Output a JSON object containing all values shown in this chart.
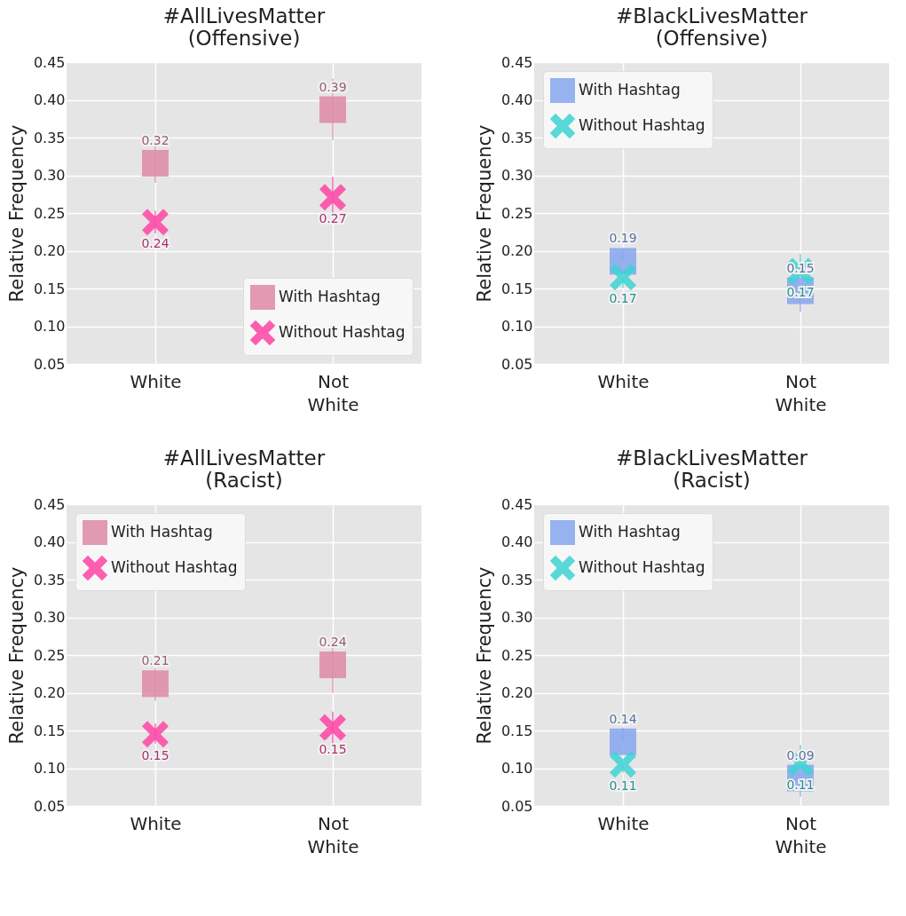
{
  "chart_data": [
    {
      "type": "scatter",
      "title": "#AllLivesMatter\n(Offensive)",
      "ylabel": "Relative Frequency",
      "categories": [
        "White",
        "Not\nWhite"
      ],
      "ylim": [
        0.05,
        0.45
      ],
      "yticks": [
        0.05,
        {
          "value": 0.1,
          "label": "0.10"
        },
        0.15,
        {
          "value": 0.2,
          "label": "0.20"
        },
        0.25,
        {
          "value": 0.3,
          "label": "0.30"
        },
        0.35,
        {
          "value": 0.4,
          "label": "0.40"
        },
        0.45
      ],
      "grid": true,
      "legend": "bottom right",
      "series": [
        {
          "name": "With Hashtag",
          "color": "#de8aa6",
          "marker": "square",
          "values": [
            0.316,
            0.387
          ],
          "value_labels": [
            "0.32",
            "0.39"
          ],
          "errors": [
            [
              0.29,
              0.341
            ],
            [
              0.347,
              0.428
            ]
          ]
        },
        {
          "name": "Without Hashtag",
          "color": "#ff44a4",
          "marker": "cross",
          "values": [
            0.238,
            0.271
          ],
          "value_labels": [
            "0.24",
            "0.27"
          ],
          "errors": [
            [
              0.223,
              0.253
            ],
            [
              0.245,
              0.298
            ]
          ]
        }
      ]
    },
    {
      "type": "scatter",
      "title": "#BlackLivesMatter\n(Offensive)",
      "ylabel": "Relative Frequency",
      "categories": [
        "White",
        "Not\nWhite"
      ],
      "ylim": [
        0.05,
        0.45
      ],
      "yticks": [
        0.05,
        {
          "value": 0.1,
          "label": "0.10"
        },
        0.15,
        {
          "value": 0.2,
          "label": "0.20"
        },
        0.25,
        {
          "value": 0.3,
          "label": "0.30"
        },
        0.35,
        {
          "value": 0.4,
          "label": "0.40"
        },
        0.45
      ],
      "grid": true,
      "legend": "top left",
      "series": [
        {
          "name": "With Hashtag",
          "color": "#86a6ee",
          "marker": "square",
          "values": [
            0.186,
            0.147
          ],
          "value_labels": [
            "0.19",
            "0.15"
          ],
          "errors": [
            [
              0.186,
              0.203
            ],
            [
              0.119,
              0.147
            ]
          ]
        },
        {
          "name": "Without Hashtag",
          "color": "#3dd3d3",
          "marker": "cross",
          "values": [
            0.165,
            0.173
          ],
          "value_labels": [
            "0.17",
            "0.17"
          ],
          "errors": [
            [
              0.151,
              0.165
            ],
            [
              0.173,
              0.196
            ]
          ]
        }
      ]
    },
    {
      "type": "scatter",
      "title": "#AllLivesMatter\n(Racist)",
      "ylabel": "Relative Frequency",
      "categories": [
        "White",
        "Not\nWhite"
      ],
      "ylim": [
        0.05,
        0.45
      ],
      "yticks": [
        0.05,
        {
          "value": 0.1,
          "label": "0.10"
        },
        0.15,
        {
          "value": 0.2,
          "label": "0.20"
        },
        0.25,
        {
          "value": 0.3,
          "label": "0.30"
        },
        0.35,
        {
          "value": 0.4,
          "label": "0.40"
        },
        0.45
      ],
      "grid": true,
      "legend": "top left",
      "series": [
        {
          "name": "With Hashtag",
          "color": "#de8aa6",
          "marker": "square",
          "values": [
            0.212,
            0.237
          ],
          "value_labels": [
            "0.21",
            "0.24"
          ],
          "errors": [
            [
              0.189,
              0.232
            ],
            [
              0.2,
              0.275
            ]
          ]
        },
        {
          "name": "Without Hashtag",
          "color": "#ff44a4",
          "marker": "cross",
          "values": [
            0.145,
            0.154
          ],
          "value_labels": [
            "0.15",
            "0.15"
          ],
          "errors": [
            [
              0.133,
              0.159
            ],
            [
              0.131,
              0.175
            ]
          ]
        }
      ]
    },
    {
      "type": "scatter",
      "title": "#BlackLivesMatter\n(Racist)",
      "ylabel": "Relative Frequency",
      "categories": [
        "White",
        "Not\nWhite"
      ],
      "ylim": [
        0.05,
        0.45
      ],
      "yticks": [
        0.05,
        {
          "value": 0.1,
          "label": "0.10"
        },
        0.15,
        {
          "value": 0.2,
          "label": "0.20"
        },
        0.25,
        {
          "value": 0.3,
          "label": "0.30"
        },
        0.35,
        {
          "value": 0.4,
          "label": "0.40"
        },
        0.45
      ],
      "grid": true,
      "legend": "top left",
      "series": [
        {
          "name": "With Hashtag",
          "color": "#86a6ee",
          "marker": "square",
          "values": [
            0.135,
            0.087
          ],
          "value_labels": [
            "0.14",
            "0.09"
          ],
          "errors": [
            [
              0.135,
              0.154
            ],
            [
              0.062,
              0.087
            ]
          ]
        },
        {
          "name": "Without Hashtag",
          "color": "#3dd3d3",
          "marker": "cross",
          "values": [
            0.105,
            0.107
          ],
          "value_labels": [
            "0.11",
            "0.11"
          ],
          "errors": [
            [
              0.094,
              0.105
            ],
            [
              0.107,
              0.131
            ]
          ]
        }
      ]
    }
  ]
}
